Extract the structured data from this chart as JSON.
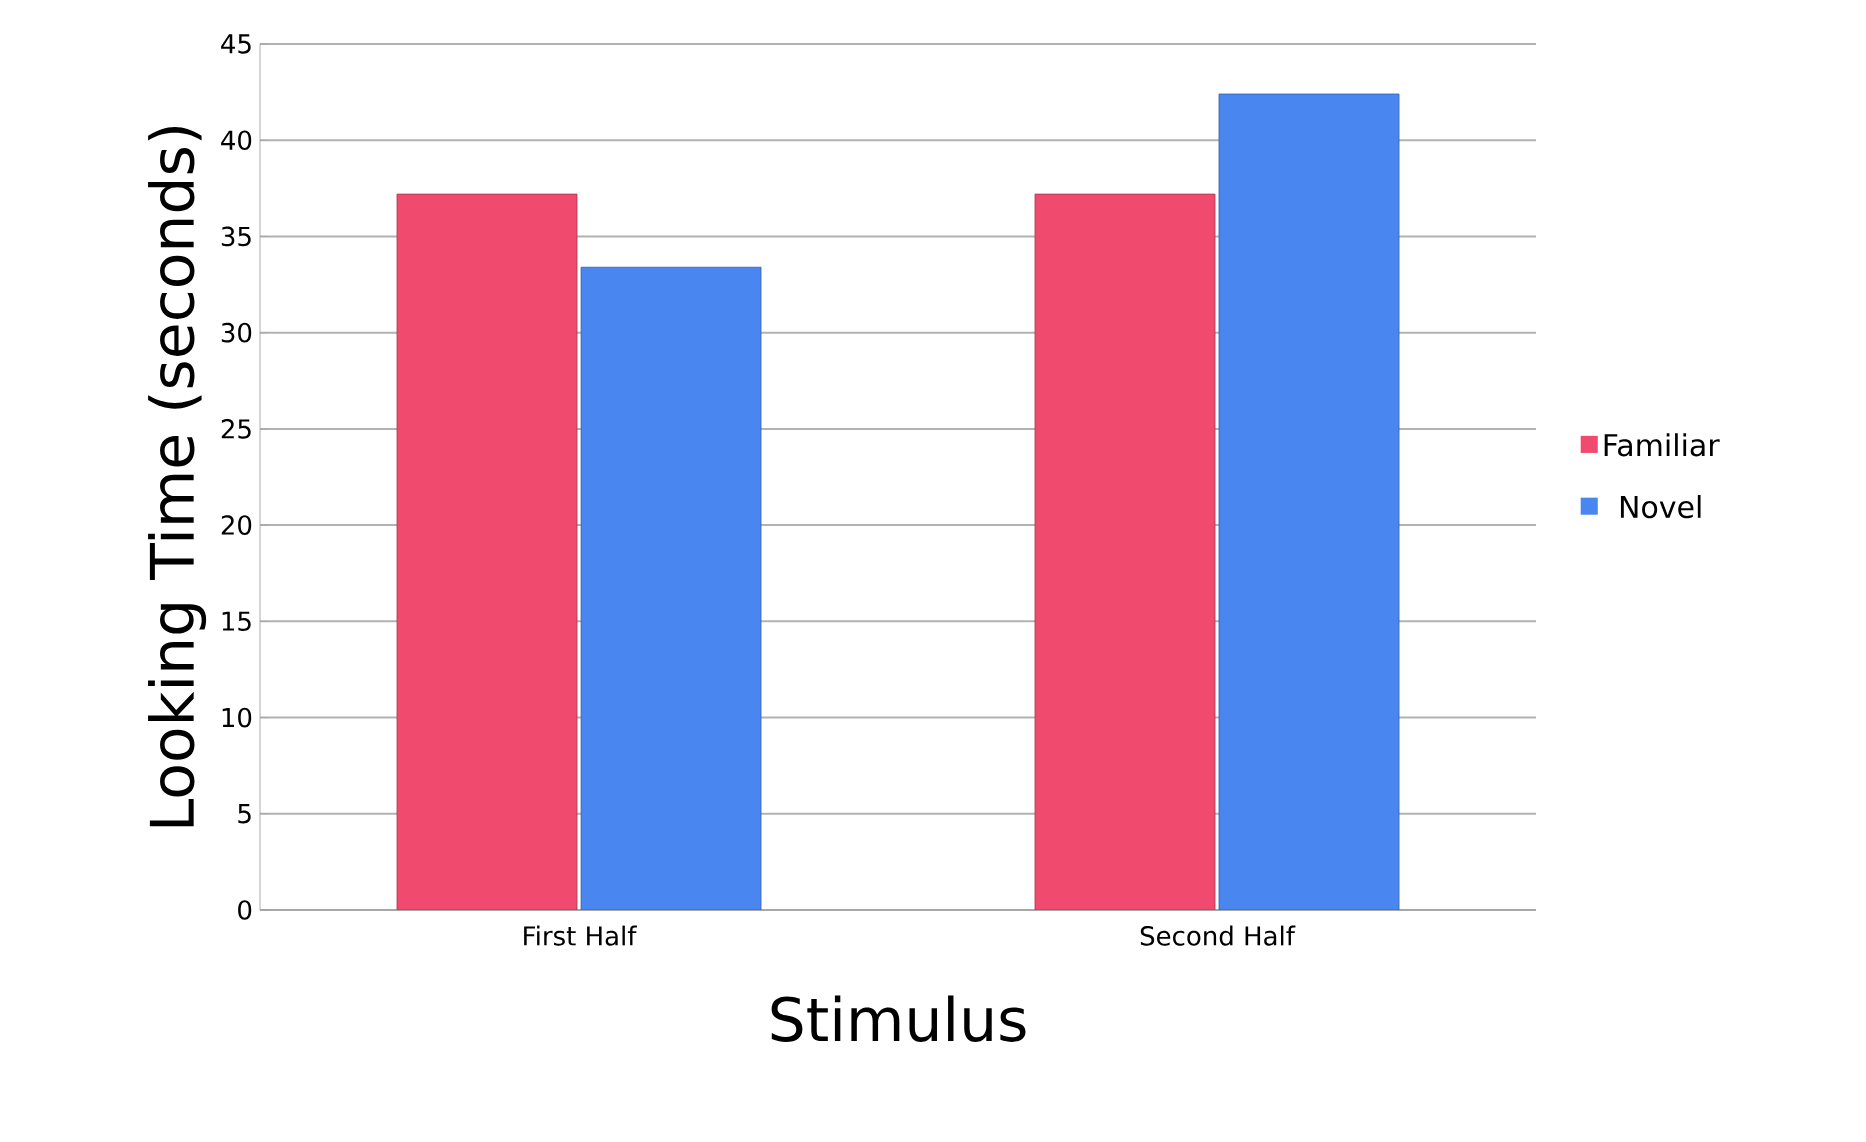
{
  "chart_data": {
    "type": "bar",
    "xlabel": "Stimulus",
    "ylabel": "Looking Time (seconds)",
    "categories": [
      "First Half",
      "Second Half"
    ],
    "series": [
      {
        "name": "Familiar",
        "color": "#f04a6e",
        "values": [
          37.2,
          37.2
        ]
      },
      {
        "name": "Novel",
        "color": "#4a86f0",
        "values": [
          33.4,
          42.4
        ]
      }
    ],
    "ylim": [
      0,
      45
    ],
    "yticks": [
      0,
      5,
      10,
      15,
      20,
      25,
      30,
      35,
      40,
      45
    ],
    "grid": "y",
    "legend": "right"
  }
}
